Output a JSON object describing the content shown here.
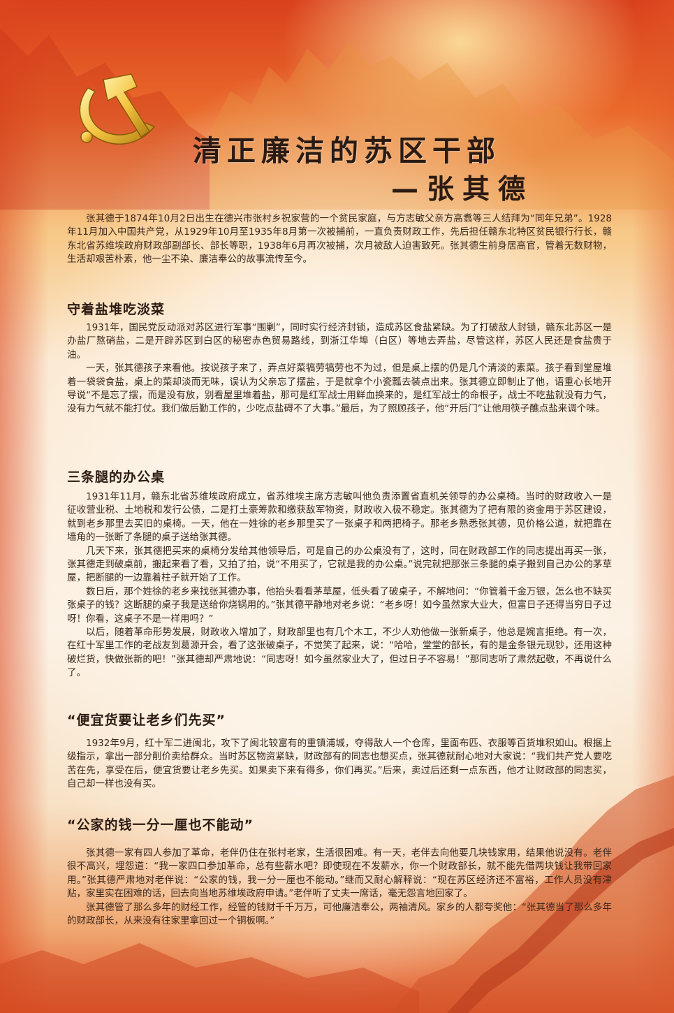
{
  "title": {
    "line1": "清正廉洁的苏区干部",
    "line2": "—张其德"
  },
  "intro": "张其德于1874年10月2日出生在德兴市张村乡祝家营的一个贫民家庭，与方志敏父亲方高翥等三人结拜为“同年兄弟”。1928年11月加入中国共产党，从1929年10月至1935年8月第一次被捕前，一直负责财政工作，先后担任赣东北特区贫民银行行长，赣东北省苏维埃政府财政部副部长、部长等职，1938年6月再次被捕，次月被敌人迫害致死。张其德生前身居高官，管着无数财物，生活却艰苦朴素，他一尘不染、廉洁奉公的故事流传至今。",
  "sections": [
    {
      "heading": "守着盐堆吃淡菜",
      "paragraphs": [
        "1931年，国民党反动派对苏区进行军事“围剿”，同时实行经济封锁，造成苏区食盐紧缺。为了打破敌人封锁，赣东北苏区一是办盐厂熬硝盐，二是开辟苏区到白区的秘密赤色贸易路线，到浙江华埠（白区）等地去弄盐，尽管这样，苏区人民还是食盐贵于油。",
        "一天，张其德孩子来看他。按说孩子来了，弄点好菜犒劳犒劳也不为过，但是桌上摆的仍是几个清淡的素菜。孩子看到堂屋堆着一袋袋食盐，桌上的菜却淡而无味，误认为父亲忘了摆盐，于是就拿个小瓷瓢去装点出来。张其德立即制止了他，语重心长地开导说“不是忘了摆，而是没有放，别看屋里堆着盐，那可是红军战士用鲜血换来的，是红军战士的命根子，战士不吃盐就没有力气，没有力气就不能打仗。我们做后勤工作的，少吃点盐碍不了大事。”最后，为了照顾孩子，他“开后门”让他用筷子醮点盐来调个味。"
      ]
    },
    {
      "heading": "三条腿的办公桌",
      "paragraphs": [
        "1931年11月，赣东北省苏维埃政府成立，省苏维埃主席方志敏叫他负责添置省直机关领导的办公桌椅。当时的财政收入一是征收营业税、土地税和发行公债，二是打土豪筹款和缴获敌军物资，财政收入极不稳定。张其德为了把有限的资金用于苏区建设，就到老乡那里去买旧的桌椅。一天，他在一姓徐的老乡那里买了一张桌子和两把椅子。那老乡熟悉张其德，见价格公道，就把靠在墙角的一张断了条腿的桌子送给张其德。",
        "几天下来，张其德把买来的桌椅分发给其他领导后，可是自己的办公桌没有了，这时，同在财政部工作的同志提出再买一张，张其德走到破桌前，搬起来看了看，又拍了拍，说“不用买了，它就是我的办公桌。”说完就把那张三条腿的桌子搬到自己办公的茅草屋，把断腿的一边靠着柱子就开始了工作。",
        "数日后，那个姓徐的老乡来找张其德办事，他抬头看看茅草屋，低头看了破桌子，不解地问：“你管着千金万银，怎么也不缺买张桌子的钱？这断腿的桌子我是送给你烧锅用的。”张其德平静地对老乡说：“老乡呀！如今虽然家大业大，但富日子还得当穷日子过呀！你看，这桌子不是一样用吗？”",
        "以后，随着革命形势发展，财政收入增加了，财政部里也有几个木工，不少人劝他做一张新桌子，他总是婉言拒绝。有一次，在红十军里工作的老战友到葛源开会，看了这张破桌子，不觉笑了起来，说：“哈哈，堂堂的部长，有的是金条银元现钞，还用这种破烂货，快做张新的吧！”张其德却严肃地说：“同志呀！如今虽然家业大了，但过日子不容易！”那同志听了肃然起敬，不再说什么了。"
      ]
    },
    {
      "heading": "“便宜货要让老乡们先买”",
      "paragraphs": [
        "1932年9月，红十军二进闽北，攻下了闽北较富有的重镇浦城，夺得敌人一个仓库，里面布匹、衣服等百货堆积如山。根据上级指示，拿出一部分削价卖给群众。当时苏区物资紧缺，财政部有的同志也想买点，张其德就耐心地对大家说：“我们共产党人要吃苦在先，享受在后，便宜货要让老乡先买。如果卖下来有得多，你们再买。”后来，卖过后还剩一点东西，他才让财政部的同志买，自己却一样也没有买。"
      ]
    },
    {
      "heading": "“公家的钱一分一厘也不能动”",
      "paragraphs": [
        "张其德一家有四人参加了革命，老伴仍住在张村老家，生活很困难。有一天，老伴去向他要几块钱家用，结果他说没有。老伴很不高兴，埋怨道：“我一家四口参加革命，总有些薪水吧？即使现在不发薪水，你一个财政部长，就不能先借两块钱让我带回家用。”张其德严肃地对老伴说：“公家的钱，我一分一厘也不能动。”继而又耐心解释说：“现在苏区经济还不富裕，工作人员没有津贴，家里实在困难的话，回去向当地苏维埃政府申请。”老伴听了丈夫一席话，毫无怨言地回家了。",
        "张其德管了那么多年的财经工作，经管的钱财千千万万，可他廉洁奉公，两袖清风。家乡的人都夸奖他：“张其德当了那么多年的财政部长，从来没有往家里拿回过一个铜板啊。”"
      ]
    }
  ]
}
